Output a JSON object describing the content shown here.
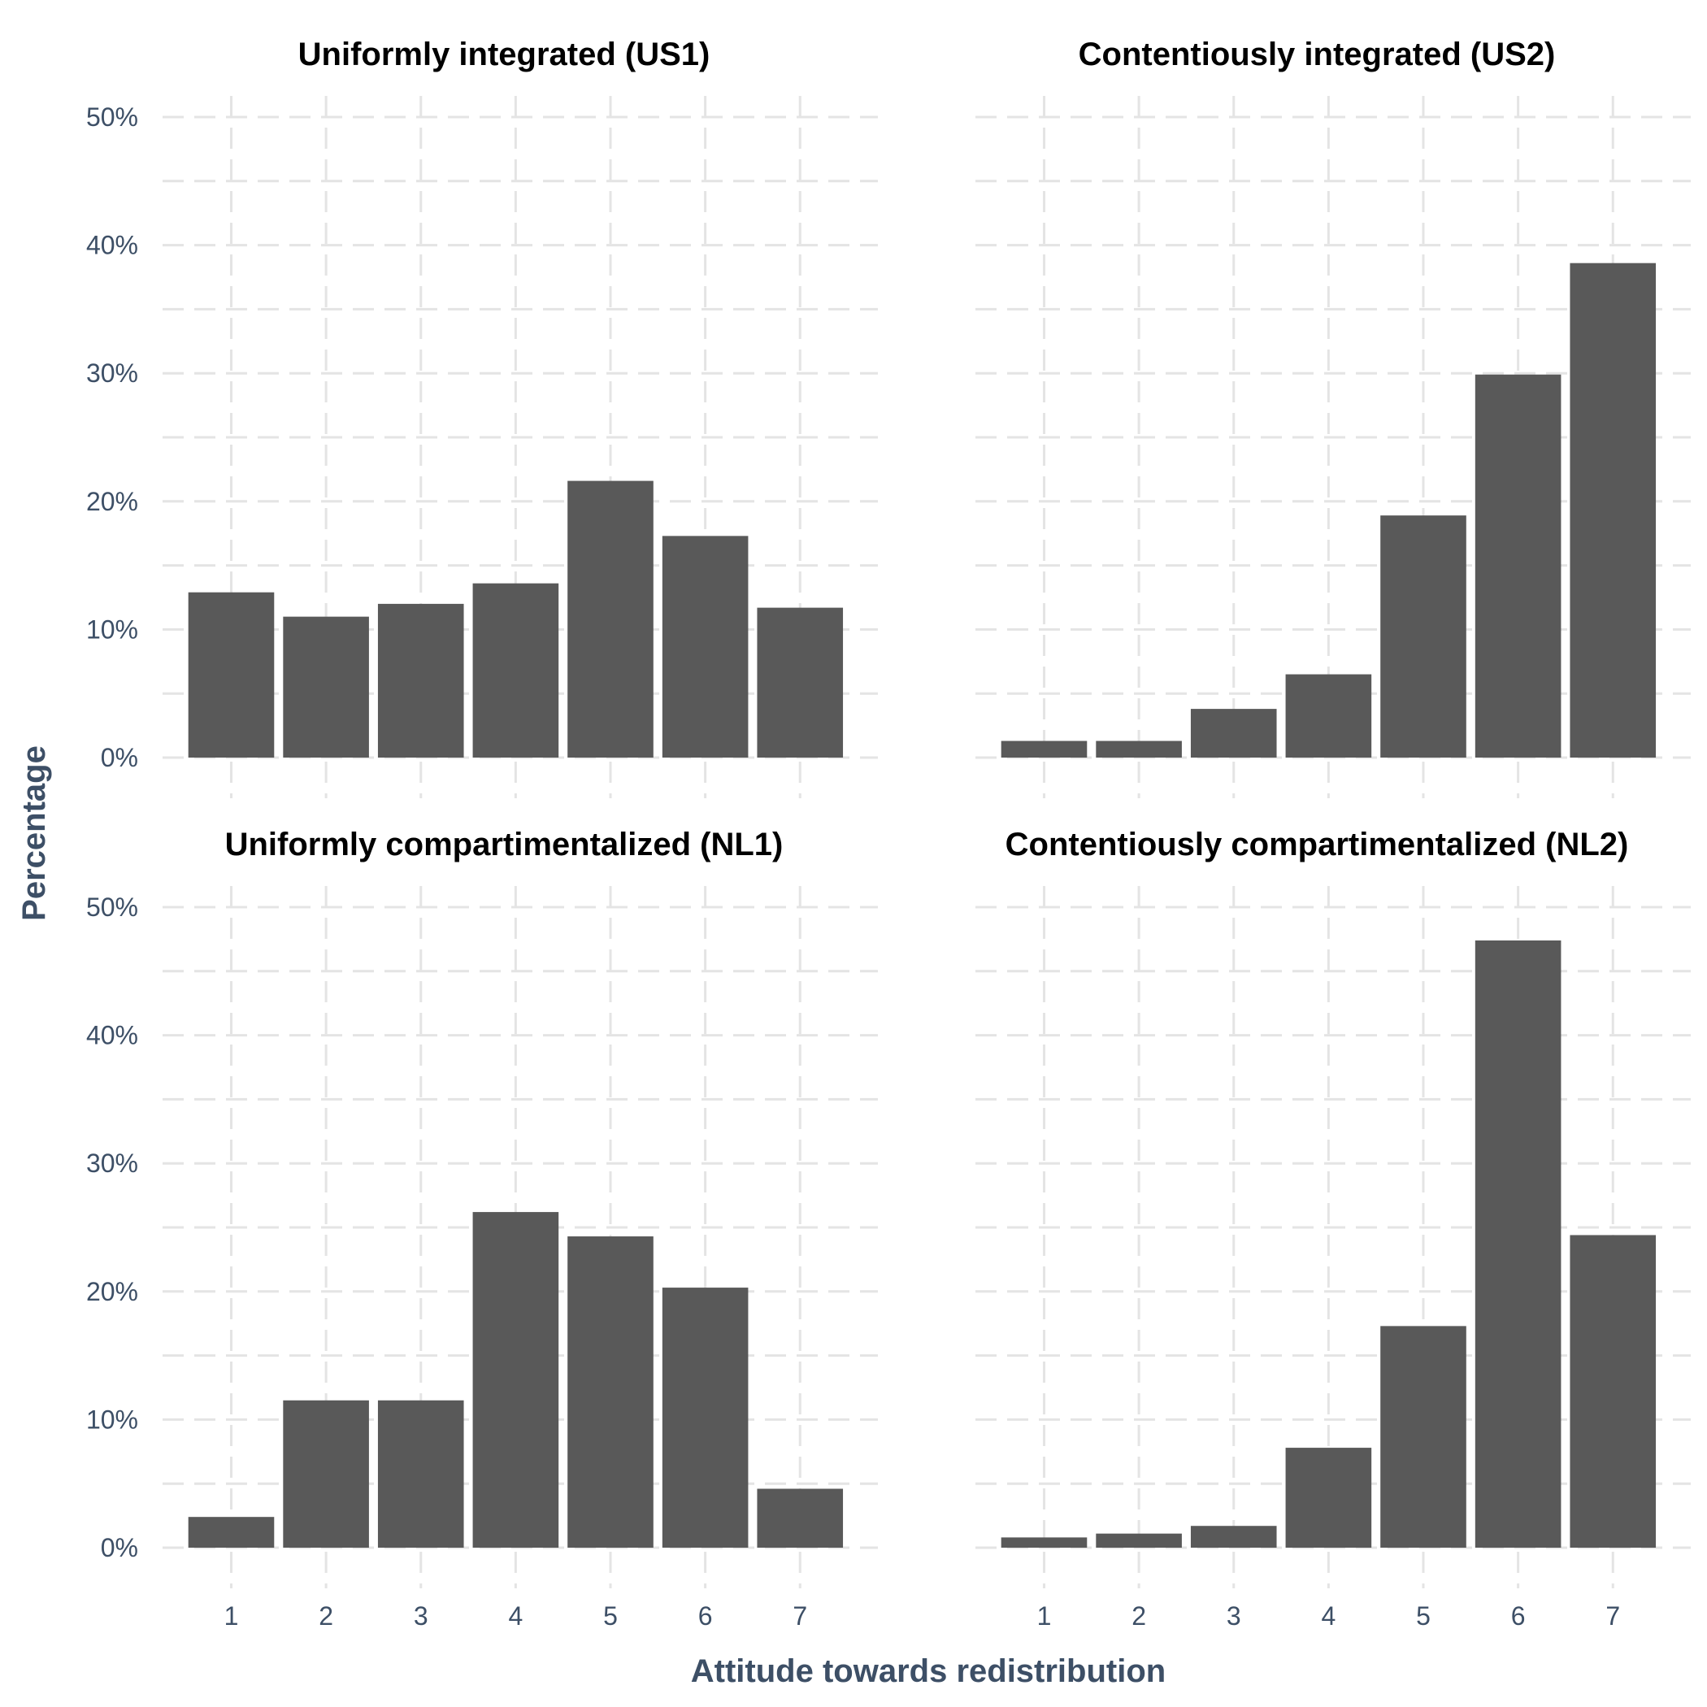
{
  "chart_data": {
    "type": "bar",
    "xlabel": "Attitude towards redistribution",
    "ylabel": "Percentage",
    "categories": [
      "1",
      "2",
      "3",
      "4",
      "5",
      "6",
      "7"
    ],
    "y_ticks": [
      "0%",
      "10%",
      "20%",
      "30%",
      "40%",
      "50%"
    ],
    "ylim": [
      0,
      50
    ],
    "grid": true,
    "legend": "none",
    "bar_color": "#595959",
    "facets": [
      {
        "title": "Uniformly integrated (US1)",
        "values": [
          12.9,
          11.0,
          12.0,
          13.6,
          21.6,
          17.3,
          11.7
        ]
      },
      {
        "title": "Contentiously integrated (US2)",
        "values": [
          1.3,
          1.3,
          3.8,
          6.5,
          18.9,
          29.9,
          38.6
        ]
      },
      {
        "title": "Uniformly compartimentalized (NL1)",
        "values": [
          2.4,
          11.5,
          11.5,
          26.2,
          24.3,
          20.3,
          4.6
        ]
      },
      {
        "title": "Contentiously compartimentalized (NL2)",
        "values": [
          0.8,
          1.1,
          1.7,
          7.8,
          17.3,
          47.4,
          24.4
        ]
      }
    ]
  }
}
